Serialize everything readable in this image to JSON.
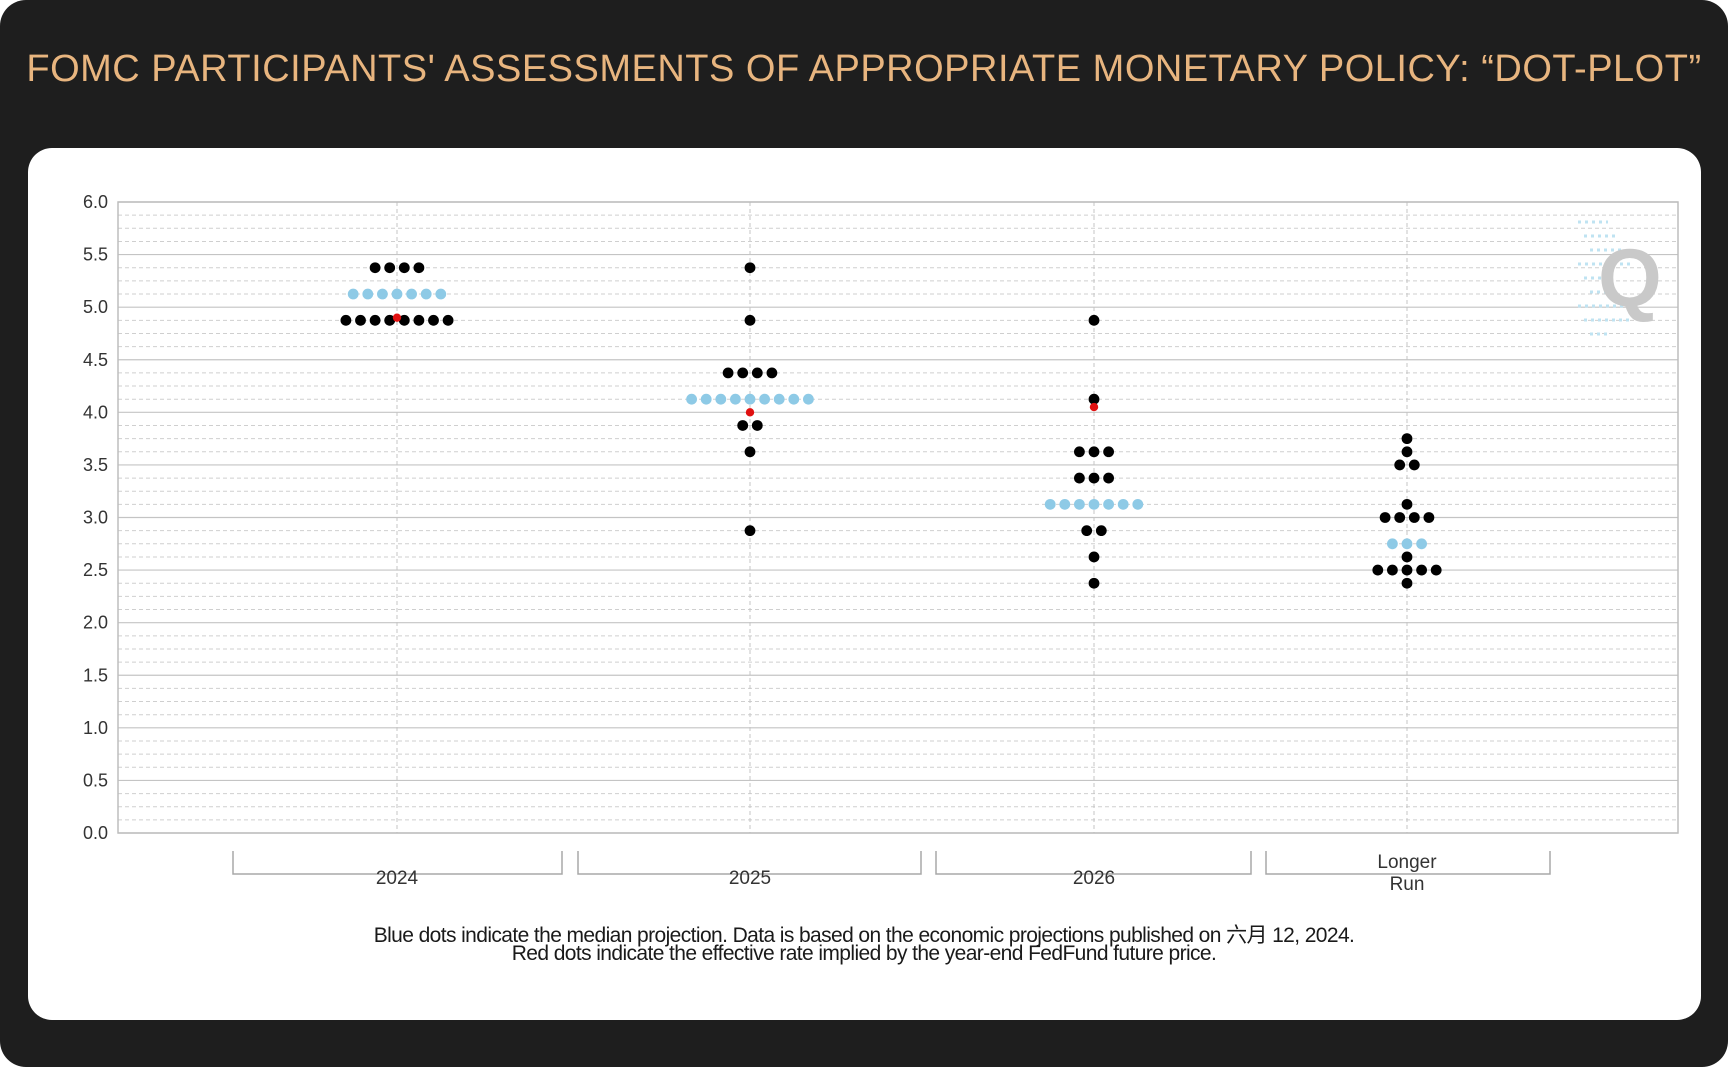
{
  "title": "FOMC PARTICIPANTS' ASSESSMENTS OF APPROPRIATE MONETARY POLICY: “DOT-PLOT”",
  "watermark": "Q",
  "notes": [
    "Blue dots indicate the median projection. Data is based on the economic projections published on 六月 12, 2024.",
    "Red dots indicate the effective rate implied by the year-end FedFund future price."
  ],
  "colors": {
    "background": "#1e1e1e",
    "title": "#e8b57f",
    "participant_dot": "#000000",
    "median_dot": "#8ecae6",
    "implied_dot": "#e01010"
  },
  "chart_data": {
    "type": "scatter",
    "title": "",
    "xlabel": "",
    "ylabel": "",
    "ylim": [
      0,
      6
    ],
    "yticks": [
      "0.0",
      "0.5",
      "1.0",
      "1.5",
      "2.0",
      "2.5",
      "3.0",
      "3.5",
      "4.0",
      "4.5",
      "5.0",
      "5.5",
      "6.0"
    ],
    "grid": true,
    "categories": [
      "2024",
      "2025",
      "2026",
      "Longer\nRun"
    ],
    "series": [
      {
        "role": "participants",
        "color": "#000000",
        "groups": [
          [
            {
              "y": 5.375,
              "n": 4
            },
            {
              "y": 4.875,
              "n": 8
            }
          ],
          [
            {
              "y": 5.375,
              "n": 1
            },
            {
              "y": 4.875,
              "n": 1
            },
            {
              "y": 4.375,
              "n": 4
            },
            {
              "y": 3.875,
              "n": 2
            },
            {
              "y": 3.625,
              "n": 1
            },
            {
              "y": 2.875,
              "n": 1
            }
          ],
          [
            {
              "y": 4.875,
              "n": 1
            },
            {
              "y": 4.125,
              "n": 1
            },
            {
              "y": 3.625,
              "n": 3
            },
            {
              "y": 3.375,
              "n": 3
            },
            {
              "y": 2.875,
              "n": 2
            },
            {
              "y": 2.625,
              "n": 1
            },
            {
              "y": 2.375,
              "n": 1
            }
          ],
          [
            {
              "y": 3.75,
              "n": 1
            },
            {
              "y": 3.625,
              "n": 1
            },
            {
              "y": 3.5,
              "n": 2
            },
            {
              "y": 3.125,
              "n": 1
            },
            {
              "y": 3.0,
              "n": 4
            },
            {
              "y": 2.625,
              "n": 1
            },
            {
              "y": 2.5,
              "n": 5
            },
            {
              "y": 2.375,
              "n": 1
            }
          ]
        ]
      },
      {
        "role": "median",
        "color": "#8ecae6",
        "groups": [
          [
            {
              "y": 5.125,
              "n": 7
            }
          ],
          [
            {
              "y": 4.125,
              "n": 9
            }
          ],
          [
            {
              "y": 3.125,
              "n": 7
            }
          ],
          [
            {
              "y": 2.75,
              "n": 3
            }
          ]
        ]
      },
      {
        "role": "implied_rate",
        "color": "#e01010",
        "groups": [
          [
            {
              "y": 4.9,
              "n": 1
            }
          ],
          [
            {
              "y": 4.0,
              "n": 1
            }
          ],
          [
            {
              "y": 4.05,
              "n": 1
            }
          ],
          []
        ]
      }
    ]
  }
}
